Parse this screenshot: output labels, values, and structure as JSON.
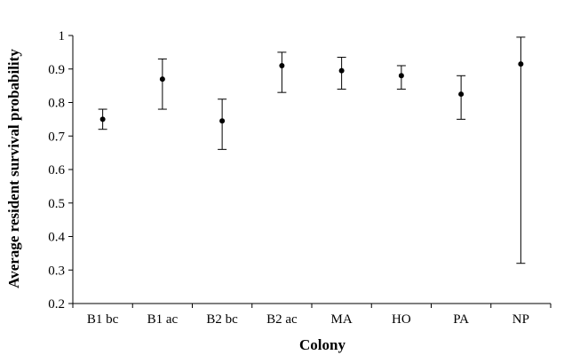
{
  "chart_data": {
    "type": "scatter",
    "title": "",
    "xlabel": "Colony",
    "ylabel": "Average resident survival probability",
    "ylim": [
      0.2,
      1.0
    ],
    "yticks": [
      "0.2",
      "0.3",
      "0.4",
      "0.5",
      "0.6",
      "0.7",
      "0.8",
      "0.9",
      "1"
    ],
    "grid": false,
    "legend": "none",
    "categories": [
      "B1 bc",
      "B1 ac",
      "B2 bc",
      "B2 ac",
      "MA",
      "HO",
      "PA",
      "NP"
    ],
    "series": [
      {
        "values": [
          0.75,
          0.87,
          0.745,
          0.91,
          0.895,
          0.88,
          0.825,
          0.915
        ],
        "lower": [
          0.72,
          0.78,
          0.66,
          0.83,
          0.84,
          0.84,
          0.75,
          0.32
        ],
        "upper": [
          0.78,
          0.93,
          0.81,
          0.95,
          0.935,
          0.91,
          0.88,
          0.995
        ]
      }
    ]
  }
}
